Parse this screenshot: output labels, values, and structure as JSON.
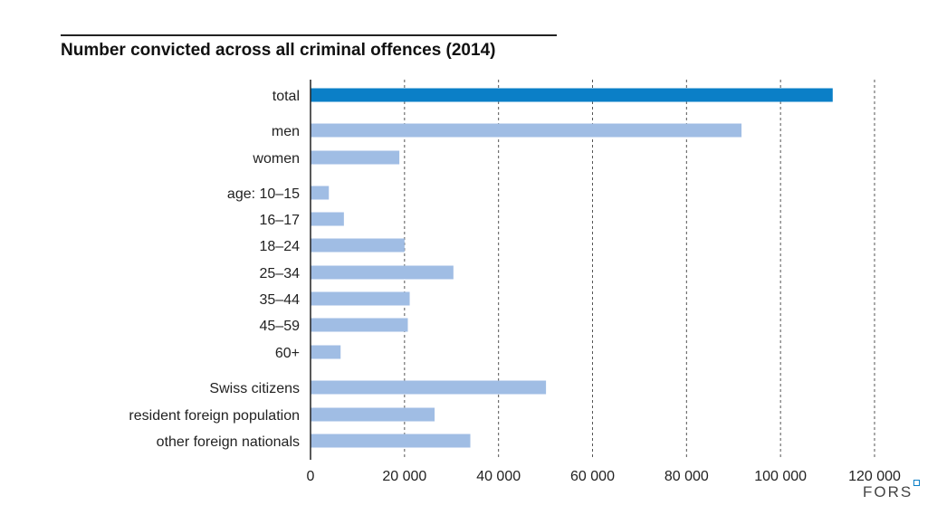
{
  "chart_data": {
    "type": "bar",
    "orientation": "horizontal",
    "title": "Number convicted across all criminal offences (2014)",
    "xlabel": "",
    "ylabel": "",
    "xlim": [
      0,
      120000
    ],
    "x_ticks": [
      0,
      20000,
      40000,
      60000,
      80000,
      100000,
      120000
    ],
    "x_tick_labels": [
      "0",
      "20 000",
      "40 000",
      "60 000",
      "80 000",
      "100 000",
      "120 000"
    ],
    "grid": "vertical dashed",
    "categories": [
      "total",
      "men",
      "women",
      "age: 10–15",
      "16–17",
      "18–24",
      "25–34",
      "35–44",
      "45–59",
      "60+",
      "Swiss citizens",
      "resident foreign population",
      "other foreign nationals"
    ],
    "values": [
      111100,
      91700,
      18900,
      3900,
      7100,
      20000,
      30400,
      21100,
      20700,
      6400,
      50100,
      26400,
      34000
    ],
    "groups": [
      0,
      1,
      1,
      2,
      2,
      2,
      2,
      2,
      2,
      2,
      3,
      3,
      3
    ],
    "colors": {
      "highlight": "#0b7fc7",
      "bar": "#a0bde4",
      "grid": "#555555"
    }
  },
  "logo": "FORS"
}
